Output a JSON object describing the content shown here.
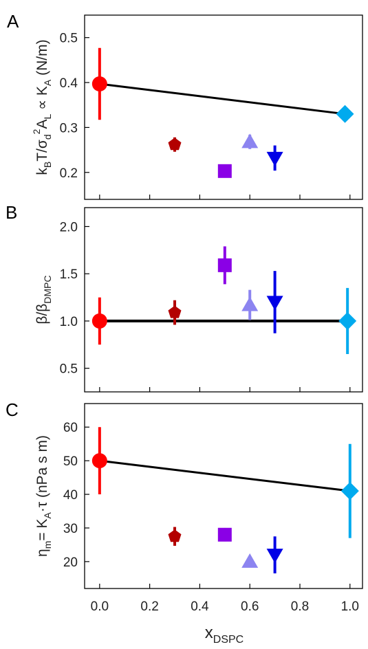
{
  "chart_data": [
    {
      "type": "scatter",
      "panel": "A",
      "ylabel_parts": {
        "main": "k",
        "sub": "B",
        "frac": "T/σ",
        "d": "d",
        "sup": "2",
        "al": "A",
        "l": "L",
        "prop": "∝ K",
        "asub": "A",
        "unit": "(N/m)"
      },
      "ylim": [
        0.14,
        0.55
      ],
      "yticks": [
        "0.2",
        "0.3",
        "0.4",
        "0.5"
      ],
      "ytick_values": [
        0.2,
        0.3,
        0.4,
        0.5
      ],
      "points": [
        {
          "x": 0.0,
          "y": 0.397,
          "err": 0.08,
          "marker": "circle",
          "color": "#ff0000"
        },
        {
          "x": 0.3,
          "y": 0.262,
          "err": 0.016,
          "marker": "pentagon",
          "color": "#b30000"
        },
        {
          "x": 0.5,
          "y": 0.203,
          "err": 0.012,
          "marker": "square",
          "color": "#8a00e6"
        },
        {
          "x": 0.6,
          "y": 0.268,
          "err": 0.016,
          "marker": "triangle-up",
          "color": "#8c84f0"
        },
        {
          "x": 0.7,
          "y": 0.232,
          "err": 0.028,
          "marker": "triangle-down",
          "color": "#0000e6"
        },
        {
          "x": 0.98,
          "y": 0.33,
          "err": 0.0,
          "marker": "diamond",
          "color": "#00aaee"
        }
      ],
      "line": {
        "x": [
          0.0,
          0.98
        ],
        "y": [
          0.397,
          0.33
        ]
      }
    },
    {
      "type": "scatter",
      "panel": "B",
      "ylabel_parts": {
        "main": "β/β",
        "sub": "DMPC"
      },
      "ylim": [
        0.25,
        2.2
      ],
      "yticks": [
        "0.5",
        "1.0",
        "1.5",
        "2.0"
      ],
      "ytick_values": [
        0.5,
        1.0,
        1.5,
        2.0
      ],
      "points": [
        {
          "x": 0.0,
          "y": 1.0,
          "err": 0.25,
          "marker": "circle",
          "color": "#ff0000"
        },
        {
          "x": 0.3,
          "y": 1.09,
          "err": 0.13,
          "marker": "pentagon",
          "color": "#b30000"
        },
        {
          "x": 0.5,
          "y": 1.59,
          "err": 0.2,
          "marker": "square",
          "color": "#8a00e6"
        },
        {
          "x": 0.6,
          "y": 1.17,
          "err": 0.16,
          "marker": "triangle-up",
          "color": "#8c84f0"
        },
        {
          "x": 0.7,
          "y": 1.2,
          "err": 0.33,
          "marker": "triangle-down",
          "color": "#0000e6"
        },
        {
          "x": 0.99,
          "y": 1.0,
          "err": 0.35,
          "marker": "diamond",
          "color": "#00aaee"
        }
      ],
      "line": {
        "x": [
          0.0,
          0.99
        ],
        "y": [
          1.0,
          1.0
        ]
      }
    },
    {
      "type": "scatter",
      "panel": "C",
      "ylabel_parts": {
        "main": "η",
        "sub": "m",
        "eq": "= K",
        "asub": "A",
        "tau": "·τ  (nPa s m)"
      },
      "ylim": [
        12,
        67
      ],
      "yticks": [
        "20",
        "30",
        "40",
        "50",
        "60"
      ],
      "ytick_values": [
        20,
        30,
        40,
        50,
        60
      ],
      "points": [
        {
          "x": 0.0,
          "y": 50.0,
          "err": 10.0,
          "marker": "circle",
          "color": "#ff0000"
        },
        {
          "x": 0.3,
          "y": 27.5,
          "err": 2.8,
          "marker": "pentagon",
          "color": "#b30000"
        },
        {
          "x": 0.5,
          "y": 28.0,
          "err": 2.0,
          "marker": "square",
          "color": "#8a00e6"
        },
        {
          "x": 0.6,
          "y": 20.0,
          "err": 1.2,
          "marker": "triangle-up",
          "color": "#8c84f0"
        },
        {
          "x": 0.7,
          "y": 22.0,
          "err": 5.5,
          "marker": "triangle-down",
          "color": "#0000e6"
        },
        {
          "x": 1.0,
          "y": 41.0,
          "err": 14.0,
          "marker": "diamond",
          "color": "#00aaee"
        }
      ],
      "line": {
        "x": [
          0.0,
          1.0
        ],
        "y": [
          50.0,
          41.0
        ]
      }
    }
  ],
  "xaxis": {
    "xlim": [
      -0.06,
      1.05
    ],
    "ticks": [
      "0.0",
      "0.2",
      "0.4",
      "0.6",
      "0.8",
      "1.0"
    ],
    "tick_values": [
      0.0,
      0.2,
      0.4,
      0.6,
      0.8,
      1.0
    ],
    "label_main": "x",
    "label_sub": "DSPC"
  }
}
